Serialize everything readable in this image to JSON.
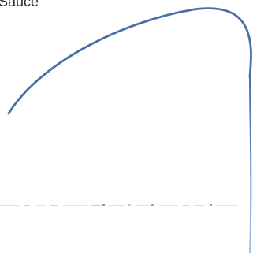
{
  "caption": {
    "text": "Sauce"
  },
  "colors": {
    "background": "#ffffff",
    "caption": "#2b2b2b",
    "curve": "#4a6fa5",
    "curve_faded": "#8fb0da",
    "dots": "#9aa6bf"
  }
}
